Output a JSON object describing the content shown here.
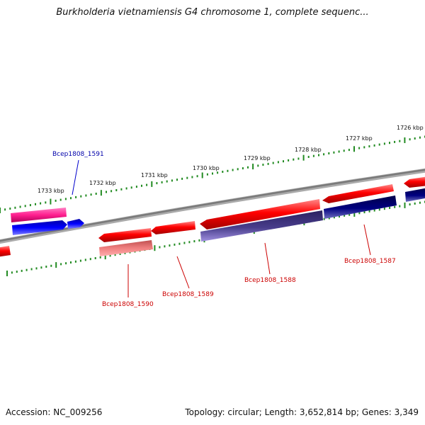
{
  "title": "Burkholderia vietnamiensis G4 chromosome 1, complete sequenc...",
  "footer": {
    "accession": "Accession: NC_009256",
    "stats": "Topology: circular; Length: 3,652,814 bp; Genes: 3,349"
  },
  "colors": {
    "backbone": "#888888",
    "ticks": "#228B22",
    "forward_gene": "#ff0000",
    "forward_gene_pink": "#ff1f8f",
    "forward_gene_light": "#f08080",
    "reverse_gene": "#0000ff",
    "reverse_gene_dark": "#000080",
    "reverse_gene_slate": "#483d8b",
    "label_blue": "#0000aa",
    "label_red": "#cc0000"
  },
  "scale_labels": [
    "1733 kbp",
    "1732 kbp",
    "1731 kbp",
    "1730 kbp",
    "1729 kbp",
    "1728 kbp",
    "1727 kbp",
    "1726 kbp"
  ],
  "gene_labels": [
    {
      "id": "Bcep1808_1591",
      "color": "blue"
    },
    {
      "id": "Bcep1808_1590",
      "color": "red"
    },
    {
      "id": "Bcep1808_1589",
      "color": "red"
    },
    {
      "id": "Bcep1808_1588",
      "color": "red"
    },
    {
      "id": "Bcep1808_1587",
      "color": "red"
    }
  ]
}
